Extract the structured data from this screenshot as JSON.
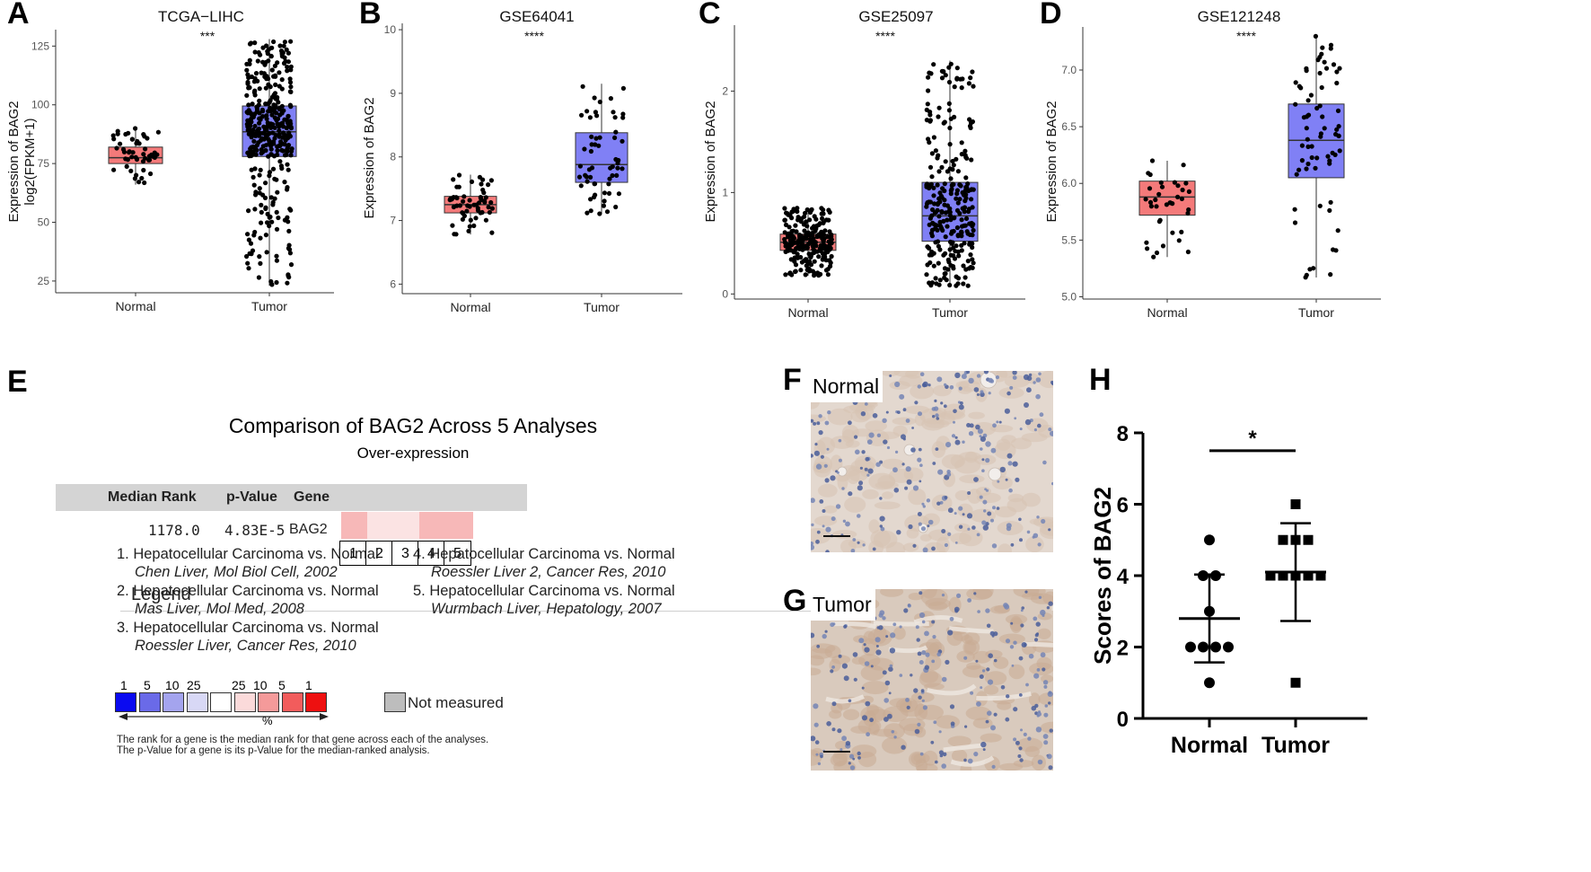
{
  "panels": {
    "A": "A",
    "B": "B",
    "C": "C",
    "D": "D",
    "E": "E",
    "F": "F",
    "G": "G",
    "H": "H"
  },
  "colors": {
    "normal_box": "#f47a7a",
    "tumor_box": "#8080f5",
    "point": "#000000",
    "outlier": "#888888"
  },
  "chart_data": [
    {
      "id": "A",
      "type": "box",
      "title": "TCGA−LIHC",
      "ylabel_lines": [
        "Expression of BAG2",
        "log2(FPKM+1)"
      ],
      "categories": [
        "Normal",
        "Tumor"
      ],
      "yticks": [
        25,
        50,
        75,
        100,
        125
      ],
      "ylim": [
        20,
        132
      ],
      "significance": "***",
      "boxes": [
        {
          "name": "Normal",
          "q1": 75,
          "median": 77.5,
          "q3": 82,
          "whisker_low": 66,
          "whisker_high": 90,
          "n": 50
        },
        {
          "name": "Tumor",
          "q1": 78,
          "median": 88.5,
          "q3": 99.5,
          "whisker_low": 23,
          "whisker_high": 128,
          "n": 370
        }
      ]
    },
    {
      "id": "B",
      "type": "box",
      "title": "GSE64041",
      "ylabel_lines": [
        "Expression of BAG2"
      ],
      "categories": [
        "Normal",
        "Tumor"
      ],
      "yticks": [
        6,
        7,
        8,
        9,
        10
      ],
      "ylim": [
        5.85,
        10.1
      ],
      "significance": "****",
      "boxes": [
        {
          "name": "Normal",
          "q1": 7.12,
          "median": 7.25,
          "q3": 7.38,
          "whisker_low": 6.78,
          "whisker_high": 7.72,
          "n": 60
        },
        {
          "name": "Tumor",
          "q1": 7.6,
          "median": 7.88,
          "q3": 8.38,
          "whisker_low": 7.1,
          "whisker_high": 9.15,
          "n": 60
        }
      ]
    },
    {
      "id": "C",
      "type": "box",
      "title": "GSE25097",
      "ylabel_lines": [
        "Expression of BAG2"
      ],
      "categories": [
        "Normal",
        "Tumor"
      ],
      "yticks": [
        0,
        1,
        2
      ],
      "ylim": [
        -0.05,
        2.65
      ],
      "significance": "****",
      "boxes": [
        {
          "name": "Normal",
          "q1": 0.43,
          "median": 0.51,
          "q3": 0.59,
          "whisker_low": 0.18,
          "whisker_high": 0.85,
          "n": 240
        },
        {
          "name": "Tumor",
          "q1": 0.52,
          "median": 0.77,
          "q3": 1.1,
          "whisker_low": 0.08,
          "whisker_high": 2.3,
          "n": 268
        }
      ]
    },
    {
      "id": "D",
      "type": "box",
      "title": "GSE121248",
      "ylabel_lines": [
        "Expression of BAG2"
      ],
      "categories": [
        "Normal",
        "Tumor"
      ],
      "yticks": [
        5.0,
        5.5,
        6.0,
        6.5,
        7.0
      ],
      "ytick_labels": [
        "5.0",
        "5.5",
        "6.0",
        "6.5",
        "7.0"
      ],
      "ylim": [
        4.98,
        7.38
      ],
      "significance": "****",
      "boxes": [
        {
          "name": "Normal",
          "q1": 5.72,
          "median": 5.88,
          "q3": 6.02,
          "whisker_low": 5.35,
          "whisker_high": 6.2,
          "n": 37
        },
        {
          "name": "Tumor",
          "q1": 6.05,
          "median": 6.38,
          "q3": 6.7,
          "whisker_low": 5.17,
          "whisker_high": 7.3,
          "n": 70
        }
      ]
    },
    {
      "id": "H",
      "type": "scatter",
      "ylabel": "Scores of BAG2",
      "categories": [
        "Normal",
        "Tumor"
      ],
      "yticks": [
        0,
        2,
        4,
        6,
        8
      ],
      "ylim": [
        0,
        8
      ],
      "significance": "*",
      "groups": [
        {
          "name": "Normal",
          "values": [
            5,
            4,
            4,
            3,
            2,
            2,
            2,
            2,
            1
          ],
          "mean": 2.8,
          "sd": 1.23
        },
        {
          "name": "Tumor",
          "values": [
            6,
            5,
            5,
            5,
            4,
            4,
            4,
            4,
            4,
            1
          ],
          "mean": 4.1,
          "sd": 1.37
        }
      ]
    }
  ],
  "oncomine": {
    "title": "Comparison of BAG2 Across 5 Analyses",
    "subtitle": "Over-expression",
    "headers": {
      "median_rank": "Median Rank",
      "p_value": "p-Value",
      "gene": "Gene"
    },
    "row": {
      "median_rank": "1178.0",
      "p_value": "4.83E-5",
      "gene": "BAG2"
    },
    "rank_colors": [
      "#f7b8b8",
      "#fbe3e3",
      "#fbe3e3",
      "#f7b8b8",
      "#f7b8b8"
    ],
    "rank_numbers": [
      "1",
      "2",
      "3",
      "4",
      "5"
    ],
    "legend_title": "Legend",
    "legend_items": [
      {
        "n": "1.",
        "text": "Hepatocellular Carcinoma vs. Normal",
        "cite": "Chen Liver, Mol Biol Cell, 2002"
      },
      {
        "n": "2.",
        "text": "Hepatocellular Carcinoma vs. Normal",
        "cite": "Mas Liver, Mol Med, 2008"
      },
      {
        "n": "3.",
        "text": "Hepatocellular Carcinoma vs. Normal",
        "cite": "Roessler Liver, Cancer Res, 2010"
      },
      {
        "n": "4.",
        "text": "Hepatocellular Carcinoma vs. Normal",
        "cite": "Roessler Liver 2, Cancer Res, 2010"
      },
      {
        "n": "5.",
        "text": "Hepatocellular Carcinoma vs. Normal",
        "cite": "Wurmbach Liver, Hepatology, 2007"
      }
    ],
    "scale_numbers": [
      "1",
      "5",
      "10",
      "25",
      "25",
      "10",
      "5",
      "1"
    ],
    "scale_colors": [
      "#0a0af0",
      "#6a6ae8",
      "#a4a4ee",
      "#d8d8f6",
      "#ffffff",
      "#fbdada",
      "#f49a9a",
      "#f25c5c",
      "#ee1010"
    ],
    "not_measured_color": "#bdbdbd",
    "not_measured": "Not measured",
    "percent": "%",
    "footnote_1": "The rank for a gene is the median rank for that gene across each of the analyses.",
    "footnote_2": "The p-Value for a gene is its p-Value for the median-ranked analysis."
  },
  "ihc": {
    "normal_label": "Normal",
    "tumor_label": "Tumor"
  }
}
